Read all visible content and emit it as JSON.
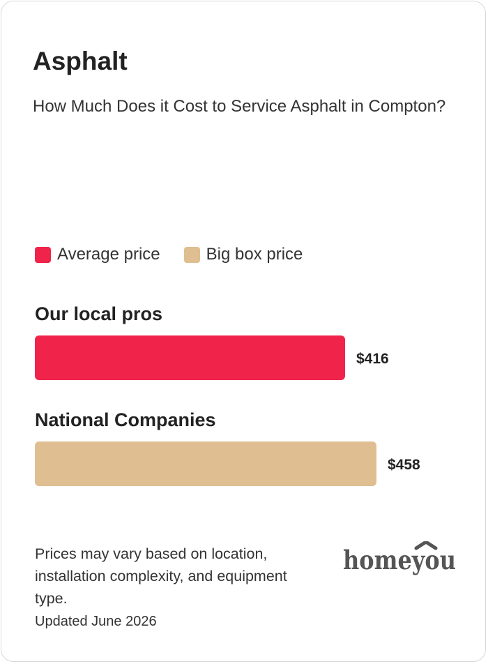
{
  "card": {
    "title": "Asphalt",
    "subtitle": "How Much Does it Cost to Service Asphalt in Compton?"
  },
  "legend": {
    "items": [
      {
        "label": "Average price",
        "color": "#F0234B"
      },
      {
        "label": "Big box price",
        "color": "#DFBE92"
      }
    ]
  },
  "chart_data": {
    "type": "bar",
    "orientation": "horizontal",
    "categories": [
      "Our local pros",
      "National Companies"
    ],
    "values": [
      416,
      458
    ],
    "value_labels": [
      "$416",
      "$458"
    ],
    "colors": [
      "#F0234B",
      "#DFBE92"
    ],
    "series": [
      {
        "name": "Average price",
        "values": [
          416,
          null
        ]
      },
      {
        "name": "Big box price",
        "values": [
          null,
          458
        ]
      }
    ],
    "title": "Asphalt",
    "subtitle": "How Much Does it Cost to Service Asphalt in Compton?",
    "xlabel": "",
    "ylabel": "",
    "grid": false,
    "legend_position": "top-left"
  },
  "footer": {
    "disclaimer": "Prices may vary based on location, installation complexity, and equipment type.",
    "updated": "Updated June 2026",
    "logo_text": "homeyou"
  }
}
